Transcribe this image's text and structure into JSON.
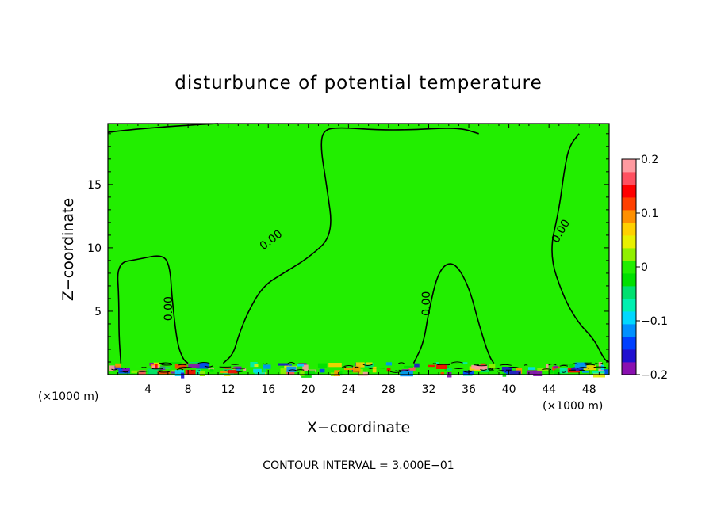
{
  "chart_data": {
    "type": "heatmap",
    "title": "disturbunce of potential temperature",
    "xlabel": "X−coordinate",
    "ylabel": "Z−coordinate",
    "x_unit": "(×1000 m)",
    "y_unit": "(×1000 m)",
    "xlim": [
      0,
      50
    ],
    "ylim": [
      0,
      19.8
    ],
    "x_ticks": [
      4,
      8,
      12,
      16,
      20,
      24,
      28,
      32,
      36,
      40,
      44,
      48
    ],
    "y_ticks": [
      5,
      10,
      15
    ],
    "colorbar": {
      "range": [
        -0.2,
        0.2
      ],
      "tick_values": [
        0.2,
        0.1,
        0,
        -0.1,
        -0.2
      ],
      "tick_labels": [
        "0.2",
        "0.1",
        "0",
        "−0.1",
        "−0.2"
      ],
      "colors": [
        "#8a10b0",
        "#2010d0",
        "#0040ff",
        "#0090ff",
        "#00d8ff",
        "#00f0b0",
        "#00e070",
        "#00e000",
        "#22ee00",
        "#90f000",
        "#e8f000",
        "#ffd000",
        "#ff9000",
        "#ff4000",
        "#ff0000",
        "#ff5060",
        "#ff9aa0"
      ]
    },
    "background_color": "#22ee00",
    "contour_label": "0.00",
    "contour_interval_text": "CONTOUR INTERVAL = 3.000E−01",
    "contours": [
      {
        "label": "0.00",
        "points": [
          [
            0,
            19.1
          ],
          [
            2,
            19.3
          ],
          [
            5,
            19.5
          ],
          [
            8.5,
            19.7
          ],
          [
            11,
            19.8
          ]
        ]
      },
      {
        "label": "0.00",
        "points": [
          [
            1.3,
            0.9
          ],
          [
            1.1,
            3
          ],
          [
            1.1,
            6
          ],
          [
            0.9,
            8.8
          ],
          [
            3,
            9.1
          ],
          [
            5.5,
            9.5
          ],
          [
            6.2,
            8.5
          ],
          [
            6.4,
            6
          ],
          [
            6.9,
            2.5
          ],
          [
            7.5,
            1.2
          ],
          [
            8,
            0.9
          ]
        ]
      },
      {
        "label": "0.00",
        "points": [
          [
            11.5,
            0.9
          ],
          [
            12.5,
            1.6
          ],
          [
            13,
            3
          ],
          [
            14,
            5
          ],
          [
            15.5,
            7
          ],
          [
            17.5,
            8
          ],
          [
            20,
            9.2
          ],
          [
            22.5,
            11
          ],
          [
            21.8,
            15
          ],
          [
            21.2,
            18
          ],
          [
            21.5,
            19.3
          ],
          [
            23,
            19.5
          ],
          [
            27,
            19.3
          ],
          [
            30,
            19.3
          ],
          [
            35,
            19.5
          ],
          [
            37,
            19
          ]
        ]
      },
      {
        "label": "0.00",
        "points": [
          [
            30.5,
            0.9
          ],
          [
            31.5,
            2.5
          ],
          [
            32,
            5
          ],
          [
            33,
            8.3
          ],
          [
            34.5,
            9
          ],
          [
            36,
            7
          ],
          [
            37,
            4
          ],
          [
            38,
            1.5
          ],
          [
            38.5,
            0.9
          ]
        ]
      },
      {
        "label": "0.00",
        "points": [
          [
            47,
            19
          ],
          [
            46,
            18
          ],
          [
            45.5,
            16
          ],
          [
            45,
            13
          ],
          [
            44,
            9.5
          ],
          [
            45.5,
            6
          ],
          [
            47,
            4
          ],
          [
            48.5,
            2.8
          ],
          [
            49.5,
            1.2
          ],
          [
            50,
            1
          ]
        ]
      }
    ]
  }
}
